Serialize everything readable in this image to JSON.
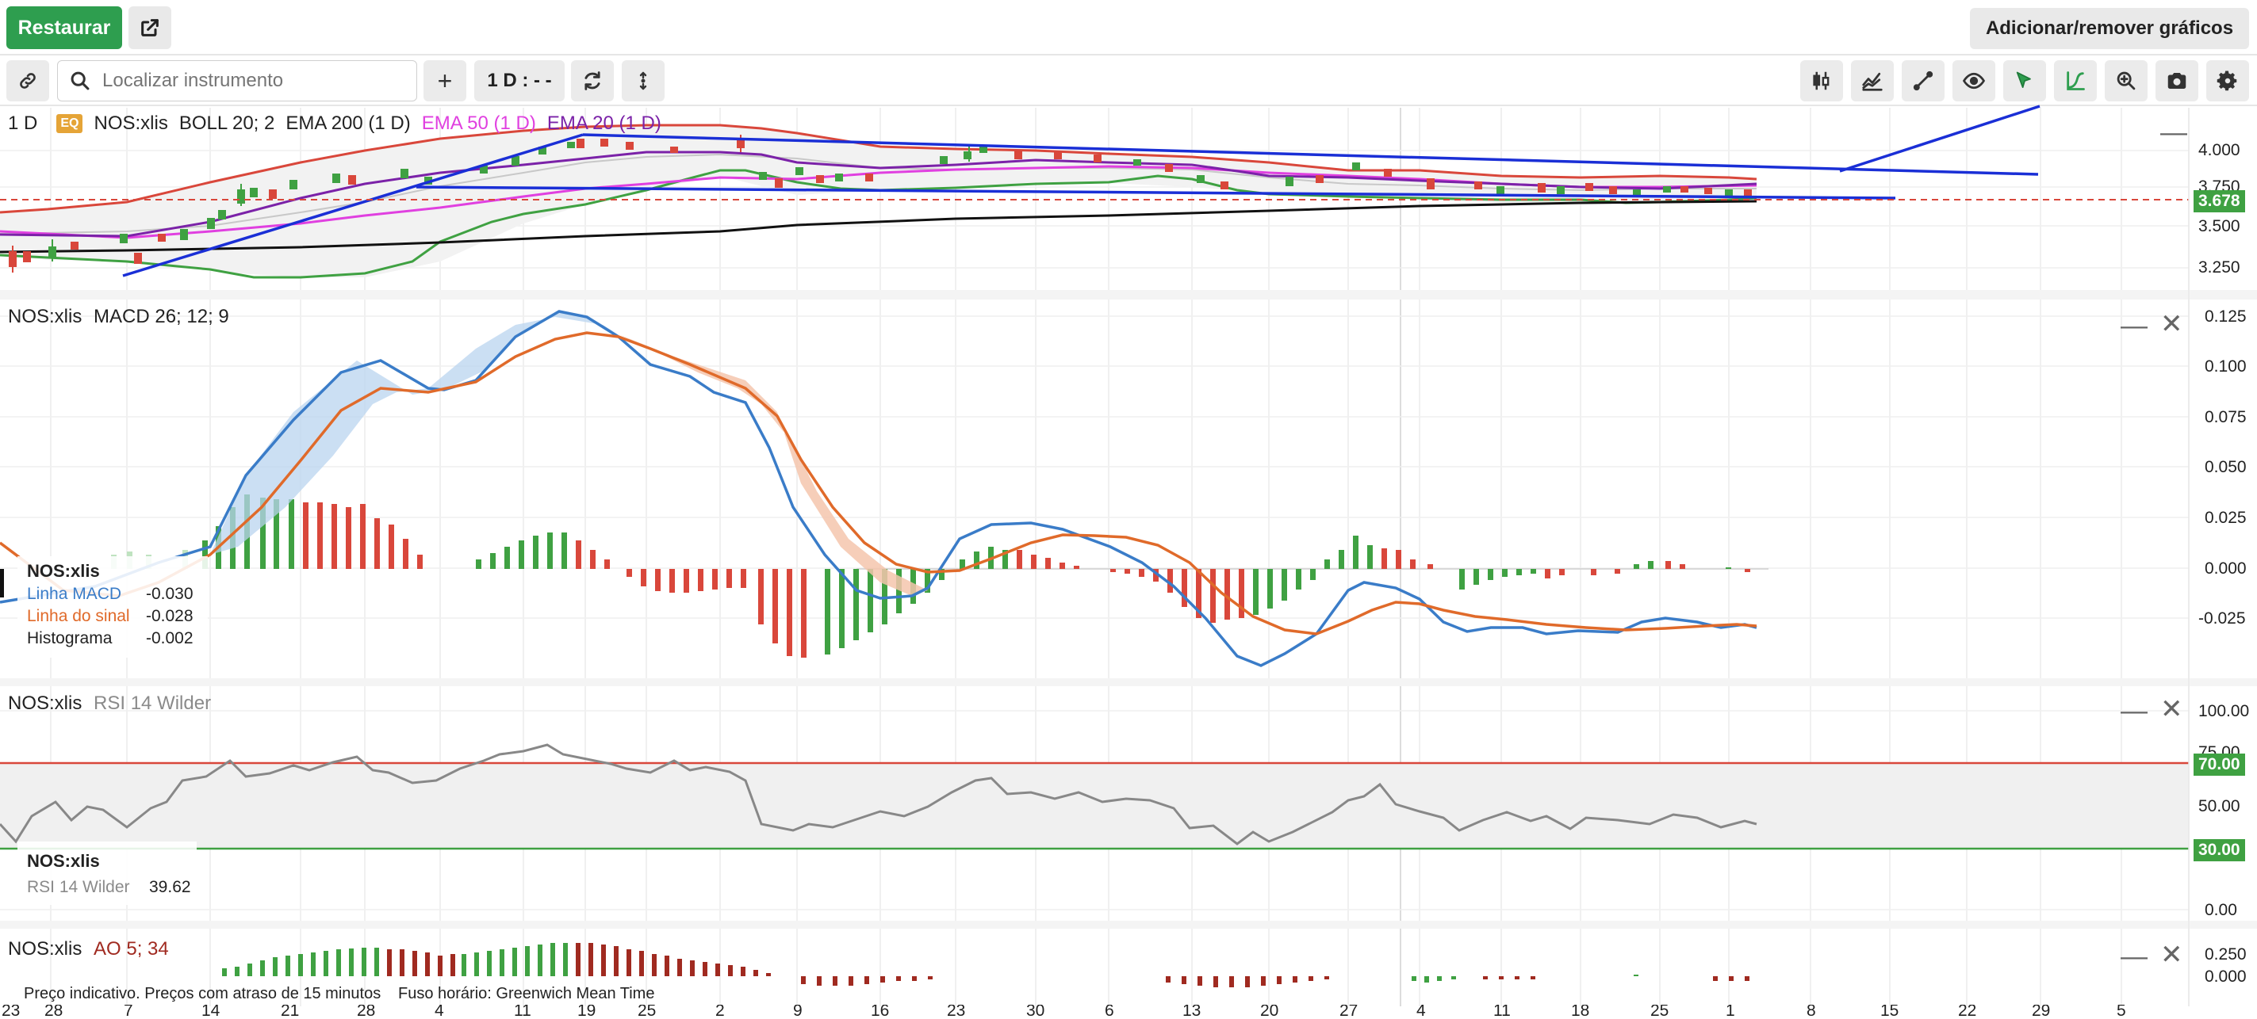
{
  "top_bar": {
    "restore_label": "Restaurar",
    "add_remove_label": "Adicionar/remover gráficos"
  },
  "toolbar": {
    "search_placeholder": "Localizar instrumento",
    "plus_label": "+",
    "interval_label": "1 D : - -"
  },
  "price_panel": {
    "interval": "1 D",
    "badge": "EQ",
    "instrument": "NOS:xlis",
    "boll": "BOLL 20; 2",
    "ema200": "EMA 200 (1 D)",
    "ema50": "EMA 50 (1 D)",
    "ema20": "EMA 20 (1 D)",
    "y_ticks": [
      "4.000",
      "3.750",
      "3.500",
      "3.250"
    ],
    "price_tag": "3.678",
    "colors": {
      "ema50": "#e040e0",
      "ema20": "#7b22a8",
      "boll": "#d9473b",
      "ema200": "#111111",
      "trend": "#1a2fd6"
    }
  },
  "macd_panel": {
    "title_instrument": "NOS:xlis",
    "title": "MACD 26; 12; 9",
    "y_ticks": [
      "0.125",
      "0.100",
      "0.075",
      "0.050",
      "0.025",
      "0.000",
      "-0.025"
    ],
    "legend": {
      "instrument": "NOS:xlis",
      "rows": [
        {
          "name": "Linha MACD",
          "value": "-0.030",
          "color": "#3a7cc8"
        },
        {
          "name": "Linha do sinal",
          "value": "-0.028",
          "color": "#e06a2a"
        },
        {
          "name": "Histograma",
          "value": "-0.002",
          "color": "#222222"
        }
      ]
    }
  },
  "rsi_panel": {
    "title_instrument": "NOS:xlis",
    "title": "RSI 14 Wilder",
    "y_ticks": [
      "100.00",
      "75.00",
      "50.00",
      "0.00"
    ],
    "upper_level": "70.00",
    "lower_level": "30.00",
    "legend": {
      "instrument": "NOS:xlis",
      "name": "RSI 14 Wilder",
      "value": "39.62"
    }
  },
  "ao_panel": {
    "title_instrument": "NOS:xlis",
    "title": "AO 5; 34",
    "y_ticks": [
      "0.250",
      "0.000"
    ]
  },
  "footer": {
    "disclaimer": "Preço indicativo. Preços com atraso de 15 minutos",
    "timezone": "Fuso horário: Greenwich Mean Time"
  },
  "x_axis_labels": [
    "23",
    "28",
    "7",
    "14",
    "21",
    "28",
    "4",
    "11",
    "19",
    "25",
    "2",
    "9",
    "16",
    "23",
    "30",
    "6",
    "13",
    "20",
    "27",
    "4",
    "11",
    "18",
    "25",
    "1",
    "8",
    "15",
    "22",
    "29",
    "5"
  ]
}
